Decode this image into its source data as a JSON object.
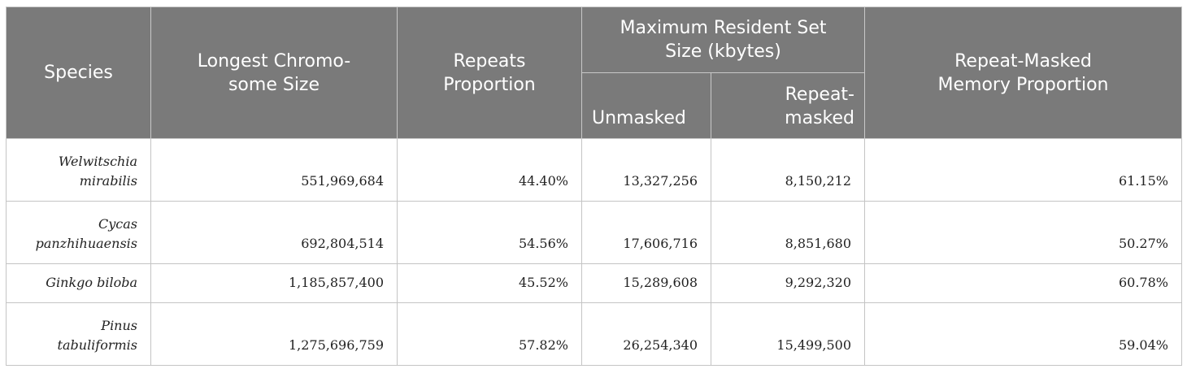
{
  "table": {
    "headers": {
      "species": "Species",
      "longest_chromosome_size": [
        "Longest Chromo-",
        "some Size"
      ],
      "repeats_proportion": [
        "Repeats",
        "Proportion"
      ],
      "max_rss": [
        "Maximum Resident Set",
        "Size (kbytes)"
      ],
      "unmasked": "Unmasked",
      "repeat_masked": [
        "Repeat-",
        "masked"
      ],
      "repeat_masked_memory_proportion": [
        "Repeat-Masked",
        "Memory Proportion"
      ]
    },
    "rows": [
      {
        "species": [
          "Welwitschia",
          "mirabilis"
        ],
        "longest_chromosome_size": "551,969,684",
        "repeats_proportion": "44.40%",
        "unmasked": "13,327,256",
        "repeat_masked": "8,150,212",
        "repeat_masked_memory_proportion": "61.15%"
      },
      {
        "species": [
          "Cycas",
          "panzhihuaensis"
        ],
        "longest_chromosome_size": "692,804,514",
        "repeats_proportion": "54.56%",
        "unmasked": "17,606,716",
        "repeat_masked": "8,851,680",
        "repeat_masked_memory_proportion": "50.27%"
      },
      {
        "species": [
          "Ginkgo biloba"
        ],
        "longest_chromosome_size": "1,185,857,400",
        "repeats_proportion": "45.52%",
        "unmasked": "15,289,608",
        "repeat_masked": "9,292,320",
        "repeat_masked_memory_proportion": "60.78%"
      },
      {
        "species": [
          "Pinus",
          "tabuliformis"
        ],
        "longest_chromosome_size": "1,275,696,759",
        "repeats_proportion": "57.82%",
        "unmasked": "26,254,340",
        "repeat_masked": "15,499,500",
        "repeat_masked_memory_proportion": "59.04%"
      }
    ]
  }
}
